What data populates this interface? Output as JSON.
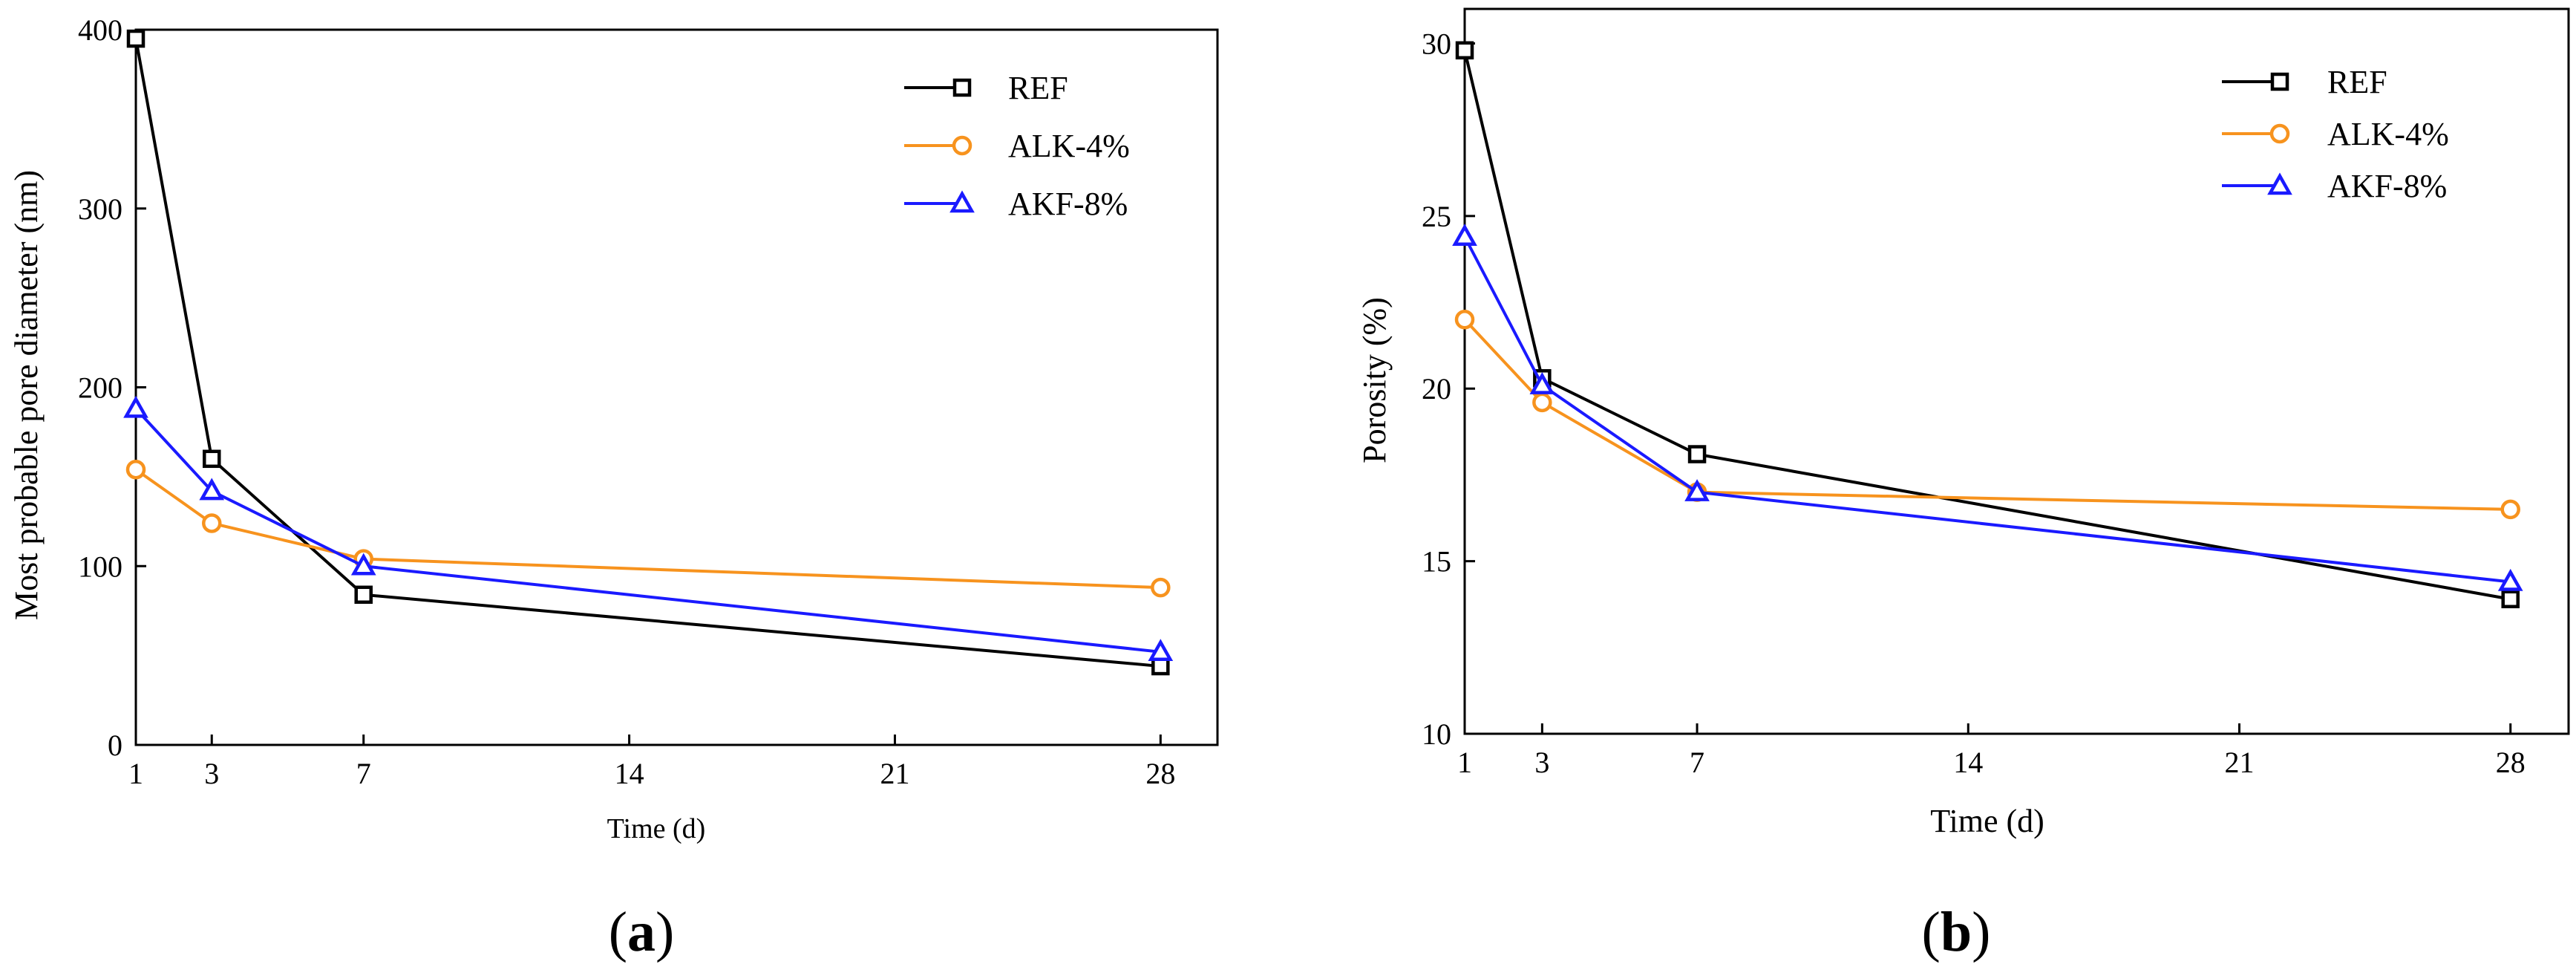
{
  "chart_data": [
    {
      "type": "line",
      "panel": "a",
      "panel_label": "(a)",
      "panel_label_open": "(",
      "panel_label_letter": "a",
      "panel_label_close": ")",
      "xlabel": "Time (d)",
      "ylabel": "Most probable pore diameter (nm)",
      "xlim": [
        1,
        29.5
      ],
      "ylim": [
        0,
        400
      ],
      "xticks": [
        1,
        3,
        7,
        14,
        21,
        28
      ],
      "yticks": [
        0,
        100,
        200,
        300,
        400
      ],
      "legend_position": "top-right",
      "series": [
        {
          "name": "REF",
          "color": "#000000",
          "marker": "square",
          "x": [
            1,
            3,
            7,
            28
          ],
          "y": [
            395,
            160,
            84,
            44
          ]
        },
        {
          "name": "ALK-4%",
          "color": "#f7931e",
          "marker": "circle",
          "x": [
            1,
            3,
            7,
            28
          ],
          "y": [
            154,
            124,
            104,
            88
          ]
        },
        {
          "name": "AKF-8%",
          "color": "#1a1aff",
          "marker": "triangle",
          "x": [
            1,
            3,
            7,
            28
          ],
          "y": [
            188,
            142,
            100,
            52
          ]
        }
      ]
    },
    {
      "type": "line",
      "panel": "b",
      "panel_label": "(b)",
      "panel_label_open": "(",
      "panel_label_letter": "b",
      "panel_label_close": ")",
      "xlabel": "Time (d)",
      "ylabel": "Porosity (%)",
      "xlim": [
        1,
        29.5
      ],
      "ylim": [
        10,
        31
      ],
      "xticks": [
        1,
        3,
        7,
        14,
        21,
        28
      ],
      "yticks": [
        10,
        15,
        20,
        25,
        30
      ],
      "legend_position": "top-right",
      "series": [
        {
          "name": "REF",
          "color": "#000000",
          "marker": "square",
          "x": [
            1,
            3,
            7,
            28
          ],
          "y": [
            29.8,
            20.3,
            18.1,
            13.9
          ]
        },
        {
          "name": "ALK-4%",
          "color": "#f7931e",
          "marker": "circle",
          "x": [
            1,
            3,
            7,
            28
          ],
          "y": [
            22.0,
            19.6,
            17.0,
            16.5
          ]
        },
        {
          "name": "AKF-8%",
          "color": "#1a1aff",
          "marker": "triangle",
          "x": [
            1,
            3,
            7,
            28
          ],
          "y": [
            24.4,
            20.1,
            17.0,
            14.4
          ]
        }
      ]
    }
  ]
}
